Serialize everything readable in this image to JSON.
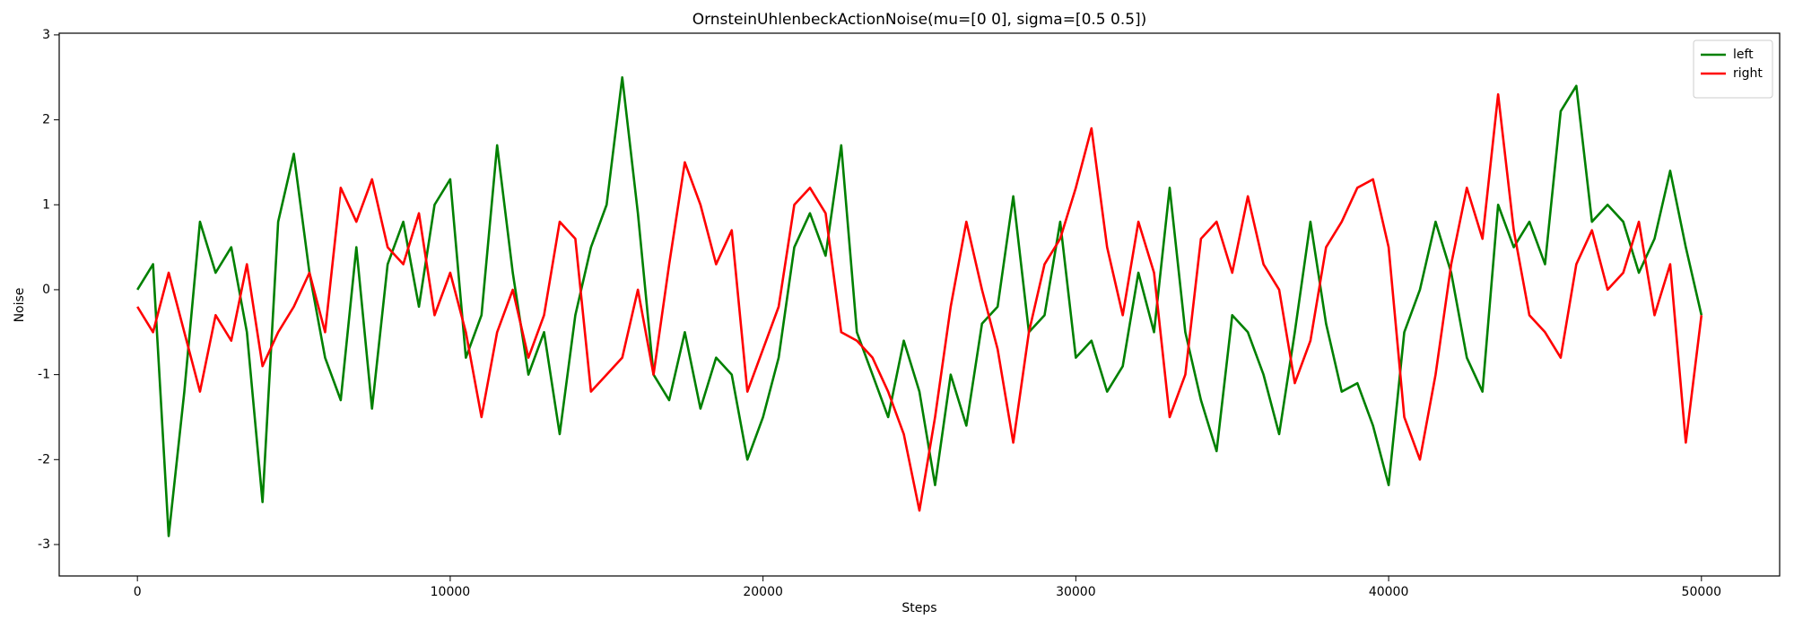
{
  "chart_data": {
    "type": "line",
    "title": "OrnsteinUhlenbeckActionNoise(mu=[0 0], sigma=[0.5 0.5])",
    "x_label": "Steps",
    "y_label": "Noise",
    "x": [
      0,
      500,
      1000,
      1500,
      2000,
      2500,
      3000,
      3500,
      4000,
      4500,
      5000,
      5500,
      6000,
      6500,
      7000,
      7500,
      8000,
      8500,
      9000,
      9500,
      10000,
      10500,
      11000,
      11500,
      12000,
      12500,
      13000,
      13500,
      14000,
      14500,
      15000,
      15500,
      16000,
      16500,
      17000,
      17500,
      18000,
      18500,
      19000,
      19500,
      20000,
      20500,
      21000,
      21500,
      22000,
      22500,
      23000,
      23500,
      24000,
      24500,
      25000,
      25500,
      26000,
      26500,
      27000,
      27500,
      28000,
      28500,
      29000,
      29500,
      30000,
      30500,
      31000,
      31500,
      32000,
      32500,
      33000,
      33500,
      34000,
      34500,
      35000,
      35500,
      36000,
      36500,
      37000,
      37500,
      38000,
      38500,
      39000,
      39500,
      40000,
      40500,
      41000,
      41500,
      42000,
      42500,
      43000,
      43500,
      44000,
      44500,
      45000,
      45500,
      46000,
      46500,
      47000,
      47500,
      48000,
      48500,
      49000,
      49500,
      50000
    ],
    "series": [
      {
        "name": "left",
        "color": "#008000",
        "values": [
          0,
          0.3,
          -2.9,
          -1.2,
          0.8,
          0.2,
          0.5,
          -0.5,
          -2.5,
          0.8,
          1.6,
          0.2,
          -0.8,
          -1.3,
          0.5,
          -1.4,
          0.3,
          0.8,
          -0.2,
          1.0,
          1.3,
          -0.8,
          -0.3,
          1.7,
          0.2,
          -1.0,
          -0.5,
          -1.7,
          -0.3,
          0.5,
          1.0,
          2.5,
          0.9,
          -1.0,
          -1.3,
          -0.5,
          -1.4,
          -0.8,
          -1.0,
          -2.0,
          -1.5,
          -0.8,
          0.5,
          0.9,
          0.4,
          1.7,
          -0.5,
          -1.0,
          -1.5,
          -0.6,
          -1.2,
          -2.3,
          -1.0,
          -1.6,
          -0.4,
          -0.2,
          1.1,
          -0.5,
          -0.3,
          0.8,
          -0.8,
          -0.6,
          -1.2,
          -0.9,
          0.2,
          -0.5,
          1.2,
          -0.5,
          -1.3,
          -1.9,
          -0.3,
          -0.5,
          -1.0,
          -1.7,
          -0.5,
          0.8,
          -0.4,
          -1.2,
          -1.1,
          -1.6,
          -2.3,
          -0.5,
          0.0,
          0.8,
          0.2,
          -0.8,
          -1.2,
          1.0,
          0.5,
          0.8,
          0.3,
          2.1,
          2.4,
          0.8,
          1.0,
          0.8,
          0.2,
          0.6,
          1.4,
          0.5,
          -0.3
        ]
      },
      {
        "name": "right",
        "color": "#ff0000",
        "values": [
          -0.2,
          -0.5,
          0.2,
          -0.5,
          -1.2,
          -0.3,
          -0.6,
          0.3,
          -0.9,
          -0.5,
          -0.2,
          0.2,
          -0.5,
          1.2,
          0.8,
          1.3,
          0.5,
          0.3,
          0.9,
          -0.3,
          0.2,
          -0.5,
          -1.5,
          -0.5,
          0.0,
          -0.8,
          -0.3,
          0.8,
          0.6,
          -1.2,
          -1.0,
          -0.8,
          0.0,
          -1.0,
          0.3,
          1.5,
          1.0,
          0.3,
          0.7,
          -1.2,
          -0.7,
          -0.2,
          1.0,
          1.2,
          0.9,
          -0.5,
          -0.6,
          -0.8,
          -1.2,
          -1.7,
          -2.6,
          -1.5,
          -0.2,
          0.8,
          0.0,
          -0.7,
          -1.8,
          -0.5,
          0.3,
          0.6,
          1.2,
          1.9,
          0.5,
          -0.3,
          0.8,
          0.2,
          -1.5,
          -1.0,
          0.6,
          0.8,
          0.2,
          1.1,
          0.3,
          0.0,
          -1.1,
          -0.6,
          0.5,
          0.8,
          1.2,
          1.3,
          0.5,
          -1.5,
          -2.0,
          -1.0,
          0.3,
          1.2,
          0.6,
          2.3,
          0.7,
          -0.3,
          -0.5,
          -0.8,
          0.3,
          0.7,
          0.0,
          0.2,
          0.8,
          -0.3,
          0.3,
          -1.8,
          -0.3
        ]
      }
    ],
    "xlim": [
      -2500,
      52500
    ],
    "xticks": [
      0,
      10000,
      20000,
      30000,
      40000,
      50000
    ],
    "ylim": [
      -3.37,
      3.02
    ],
    "yticks": [
      -3,
      -2,
      -1,
      0,
      1,
      2,
      3
    ],
    "grid": false,
    "legend": "upper right"
  }
}
